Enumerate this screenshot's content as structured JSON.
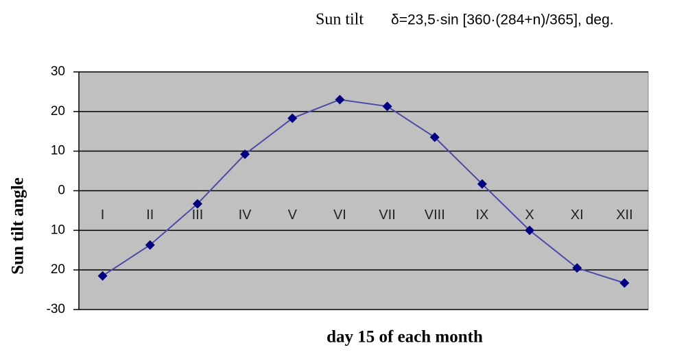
{
  "chart_data": {
    "type": "line",
    "title": "Sun tilt",
    "subtitle": "δ=23,5·sin [360·(284+n)/365], deg.",
    "y_label": "Sun tilt angle",
    "x_label": "day 15 of each month",
    "categories": [
      "I",
      "II",
      "III",
      "IV",
      "V",
      "VI",
      "VII",
      "VIII",
      "IX",
      "X",
      "XI",
      "XII"
    ],
    "series": [
      {
        "name": "Sun tilt",
        "color": "#4a4aa8",
        "marker_color": "#000080",
        "values": [
          -21.5,
          -13.7,
          -3.3,
          9.2,
          18.3,
          23.0,
          21.3,
          13.5,
          1.7,
          -10.0,
          -19.5,
          -23.3
        ]
      }
    ],
    "ylim": [
      -30,
      30
    ],
    "yticks": [
      -30,
      {
        "value": -20,
        "label": "20"
      },
      {
        "value": -10,
        "label": "10"
      },
      0,
      10,
      20,
      30
    ],
    "grid": true,
    "plot_background": "#c0c0c0"
  }
}
